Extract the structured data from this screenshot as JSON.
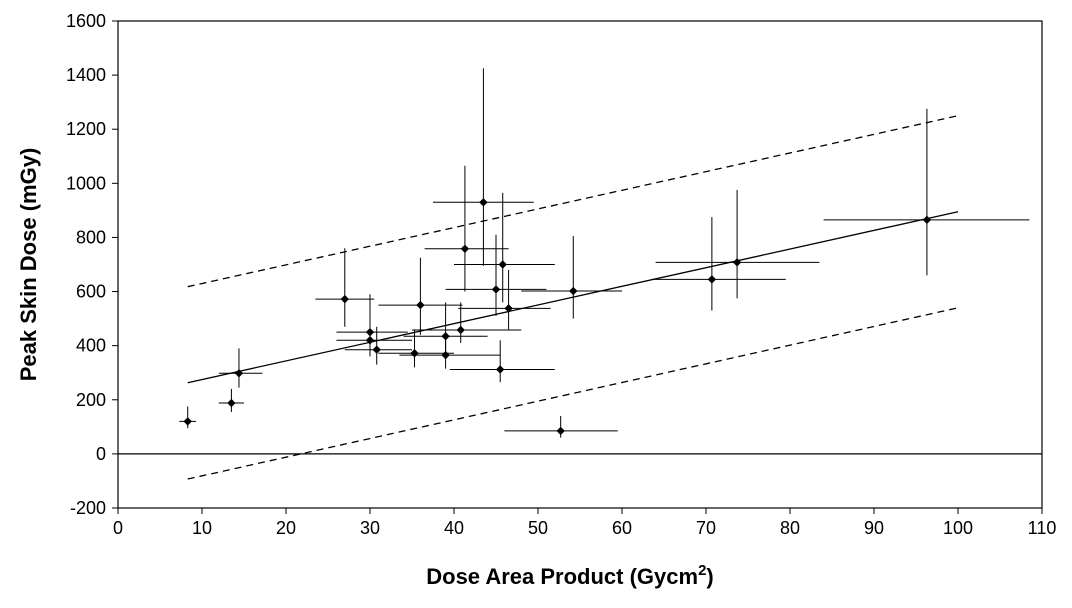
{
  "chart_data": {
    "type": "scatter",
    "title": "",
    "xlabel": "Dose Area Product (Gycm",
    "xlabel_superscript": "2",
    "xlabel_suffix": ")",
    "ylabel": "Peak Skin Dose (mGy)",
    "xlim": [
      0,
      110
    ],
    "ylim": [
      -200,
      1600
    ],
    "x_ticks": [
      0,
      10,
      20,
      30,
      40,
      50,
      60,
      70,
      80,
      90,
      100,
      110
    ],
    "y_ticks": [
      -200,
      0,
      200,
      400,
      600,
      800,
      1000,
      1200,
      1400,
      1600
    ],
    "grid": false,
    "legend": "none",
    "colors": {
      "marks": "#000000",
      "background": "#ffffff"
    },
    "points": [
      {
        "x": 8.3,
        "y": 120,
        "x_err": [
          7.3,
          9.3
        ],
        "y_err": [
          95,
          175
        ]
      },
      {
        "x": 13.5,
        "y": 188,
        "x_err": [
          12.0,
          15.0
        ],
        "y_err": [
          155,
          240
        ]
      },
      {
        "x": 14.4,
        "y": 298,
        "x_err": [
          12.0,
          17.2
        ],
        "y_err": [
          245,
          390
        ]
      },
      {
        "x": 27.0,
        "y": 572,
        "x_err": [
          23.5,
          30.5
        ],
        "y_err": [
          470,
          760
        ]
      },
      {
        "x": 30.0,
        "y": 450,
        "x_err": [
          26.0,
          34.5
        ],
        "y_err": [
          380,
          590
        ]
      },
      {
        "x": 30.0,
        "y": 420,
        "x_err": [
          26.0,
          35.0
        ],
        "y_err": [
          360,
          520
        ]
      },
      {
        "x": 30.8,
        "y": 385,
        "x_err": [
          27.0,
          35.0
        ],
        "y_err": [
          330,
          470
        ]
      },
      {
        "x": 35.3,
        "y": 372,
        "x_err": [
          31.0,
          40.0
        ],
        "y_err": [
          320,
          460
        ]
      },
      {
        "x": 36.0,
        "y": 550,
        "x_err": [
          31.0,
          41.0
        ],
        "y_err": [
          440,
          725
        ]
      },
      {
        "x": 39.0,
        "y": 435,
        "x_err": [
          34.0,
          44.0
        ],
        "y_err": [
          370,
          560
        ]
      },
      {
        "x": 39.0,
        "y": 365,
        "x_err": [
          33.5,
          45.5
        ],
        "y_err": [
          315,
          450
        ]
      },
      {
        "x": 40.8,
        "y": 458,
        "x_err": [
          35.0,
          48.0
        ],
        "y_err": [
          410,
          560
        ]
      },
      {
        "x": 41.3,
        "y": 758,
        "x_err": [
          36.5,
          46.5
        ],
        "y_err": [
          600,
          1065
        ]
      },
      {
        "x": 43.5,
        "y": 930,
        "x_err": [
          37.5,
          49.5
        ],
        "y_err": [
          695,
          1425
        ]
      },
      {
        "x": 45.0,
        "y": 608,
        "x_err": [
          39.0,
          51.0
        ],
        "y_err": [
          510,
          810
        ]
      },
      {
        "x": 45.5,
        "y": 312,
        "x_err": [
          39.5,
          52.0
        ],
        "y_err": [
          265,
          420
        ]
      },
      {
        "x": 45.8,
        "y": 700,
        "x_err": [
          40.0,
          52.0
        ],
        "y_err": [
          560,
          965
        ]
      },
      {
        "x": 46.5,
        "y": 538,
        "x_err": [
          40.5,
          51.5
        ],
        "y_err": [
          460,
          680
        ]
      },
      {
        "x": 52.7,
        "y": 85,
        "x_err": [
          46.0,
          59.5
        ],
        "y_err": [
          60,
          140
        ]
      },
      {
        "x": 54.2,
        "y": 602,
        "x_err": [
          48.0,
          60.0
        ],
        "y_err": [
          500,
          805
        ]
      },
      {
        "x": 70.7,
        "y": 645,
        "x_err": [
          63.5,
          79.5
        ],
        "y_err": [
          530,
          875
        ]
      },
      {
        "x": 73.7,
        "y": 708,
        "x_err": [
          64.0,
          83.5
        ],
        "y_err": [
          575,
          975
        ]
      },
      {
        "x": 96.3,
        "y": 865,
        "x_err": [
          84.0,
          108.5
        ],
        "y_err": [
          660,
          1275
        ]
      }
    ],
    "fit_line": {
      "x": [
        8.3,
        100
      ],
      "y": [
        263,
        895
      ],
      "style": "solid"
    },
    "band_upper": {
      "x": [
        8.3,
        100
      ],
      "y": [
        618,
        1250
      ],
      "style": "dashed"
    },
    "band_lower": {
      "x": [
        8.3,
        100
      ],
      "y": [
        -93,
        540
      ],
      "style": "dashed"
    },
    "zero_line": {
      "y": 0,
      "style": "solid"
    }
  }
}
